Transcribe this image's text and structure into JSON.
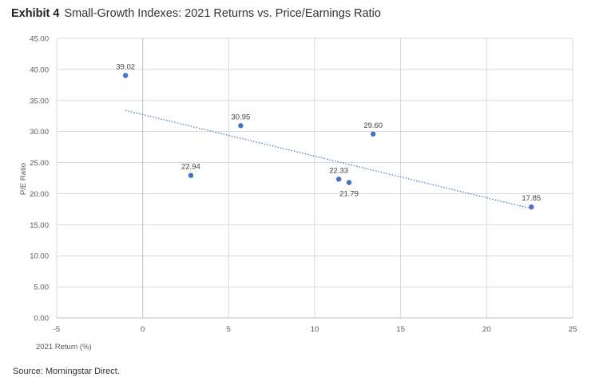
{
  "header": {
    "exhibit_label": "Exhibit 4",
    "title": "Small-Growth Indexes: 2021 Returns vs. Price/Earnings Ratio"
  },
  "footer": {
    "source": "Source: Morningstar Direct."
  },
  "colors": {
    "marker": "#4472C4",
    "trendline": "#4472C4",
    "grid": "#d9d9d9",
    "axis_text": "#595959"
  },
  "chart_data": {
    "type": "scatter",
    "title": "Small-Growth Indexes: 2021 Returns vs. Price/Earnings Ratio",
    "xlabel": "2021 Return (%)",
    "ylabel": "P/E Ratio",
    "xlim": [
      -5,
      25
    ],
    "ylim": [
      0,
      45
    ],
    "xticks": [
      -5,
      0,
      5,
      10,
      15,
      20,
      25
    ],
    "yticks": [
      "0.00",
      "5.00",
      "10.00",
      "15.00",
      "20.00",
      "25.00",
      "30.00",
      "35.00",
      "40.00",
      "45.00"
    ],
    "grid": true,
    "legend": "none",
    "points": [
      {
        "x": -1.0,
        "y": 39.02,
        "label": "39.02"
      },
      {
        "x": 2.8,
        "y": 22.94,
        "label": "22.94"
      },
      {
        "x": 5.7,
        "y": 30.95,
        "label": "30.95"
      },
      {
        "x": 11.4,
        "y": 22.33,
        "label": "22.33"
      },
      {
        "x": 12.0,
        "y": 21.79,
        "label": "21.79"
      },
      {
        "x": 13.4,
        "y": 29.6,
        "label": "29.60"
      },
      {
        "x": 22.6,
        "y": 17.85,
        "label": "17.85"
      }
    ],
    "trendline": {
      "type": "linear",
      "style": "dotted",
      "x_start": -1.0,
      "y_start": 33.4,
      "x_end": 22.6,
      "y_end": 17.6
    }
  }
}
